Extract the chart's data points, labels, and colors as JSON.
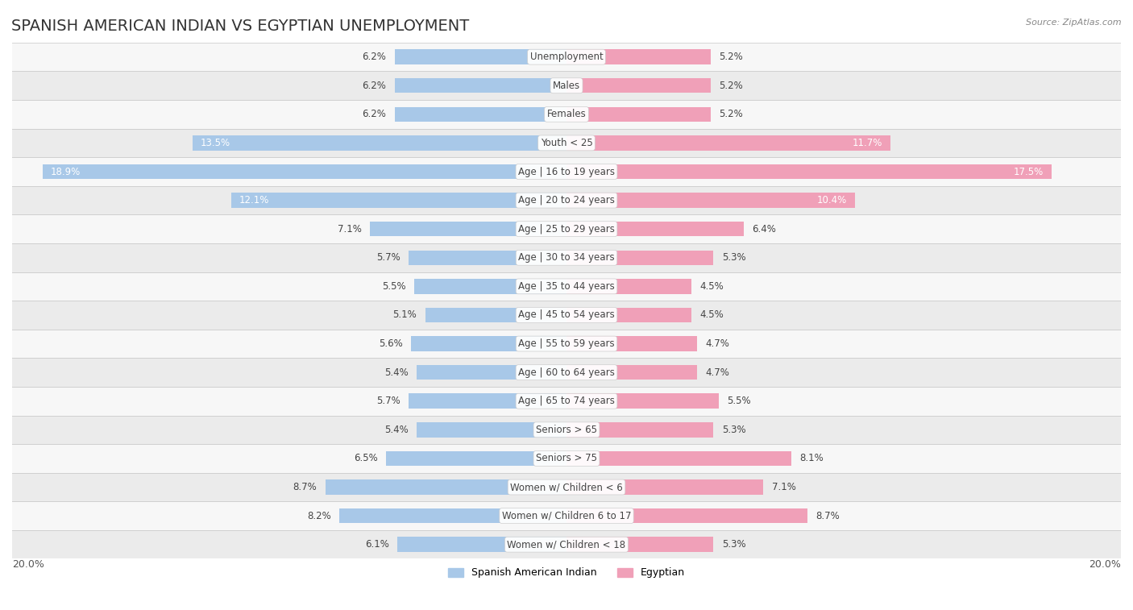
{
  "title": "SPANISH AMERICAN INDIAN VS EGYPTIAN UNEMPLOYMENT",
  "source": "Source: ZipAtlas.com",
  "categories": [
    "Unemployment",
    "Males",
    "Females",
    "Youth < 25",
    "Age | 16 to 19 years",
    "Age | 20 to 24 years",
    "Age | 25 to 29 years",
    "Age | 30 to 34 years",
    "Age | 35 to 44 years",
    "Age | 45 to 54 years",
    "Age | 55 to 59 years",
    "Age | 60 to 64 years",
    "Age | 65 to 74 years",
    "Seniors > 65",
    "Seniors > 75",
    "Women w/ Children < 6",
    "Women w/ Children 6 to 17",
    "Women w/ Children < 18"
  ],
  "spanish_american_indian": [
    6.2,
    6.2,
    6.2,
    13.5,
    18.9,
    12.1,
    7.1,
    5.7,
    5.5,
    5.1,
    5.6,
    5.4,
    5.7,
    5.4,
    6.5,
    8.7,
    8.2,
    6.1
  ],
  "egyptian": [
    5.2,
    5.2,
    5.2,
    11.7,
    17.5,
    10.4,
    6.4,
    5.3,
    4.5,
    4.5,
    4.7,
    4.7,
    5.5,
    5.3,
    8.1,
    7.1,
    8.7,
    5.3
  ],
  "color_spanish": "#a8c8e8",
  "color_egyptian": "#f0a0b8",
  "color_spanish_text_dark": "#5a8fc0",
  "color_egyptian_text_dark": "#e06080",
  "row_color_light": "#f7f7f7",
  "row_color_medium": "#ebebeb",
  "row_separator": "#d0d0d0",
  "xlim": 20.0,
  "bar_height": 0.52,
  "title_fontsize": 14,
  "label_fontsize": 8.5,
  "value_fontsize": 8.5,
  "legend_fontsize": 9
}
